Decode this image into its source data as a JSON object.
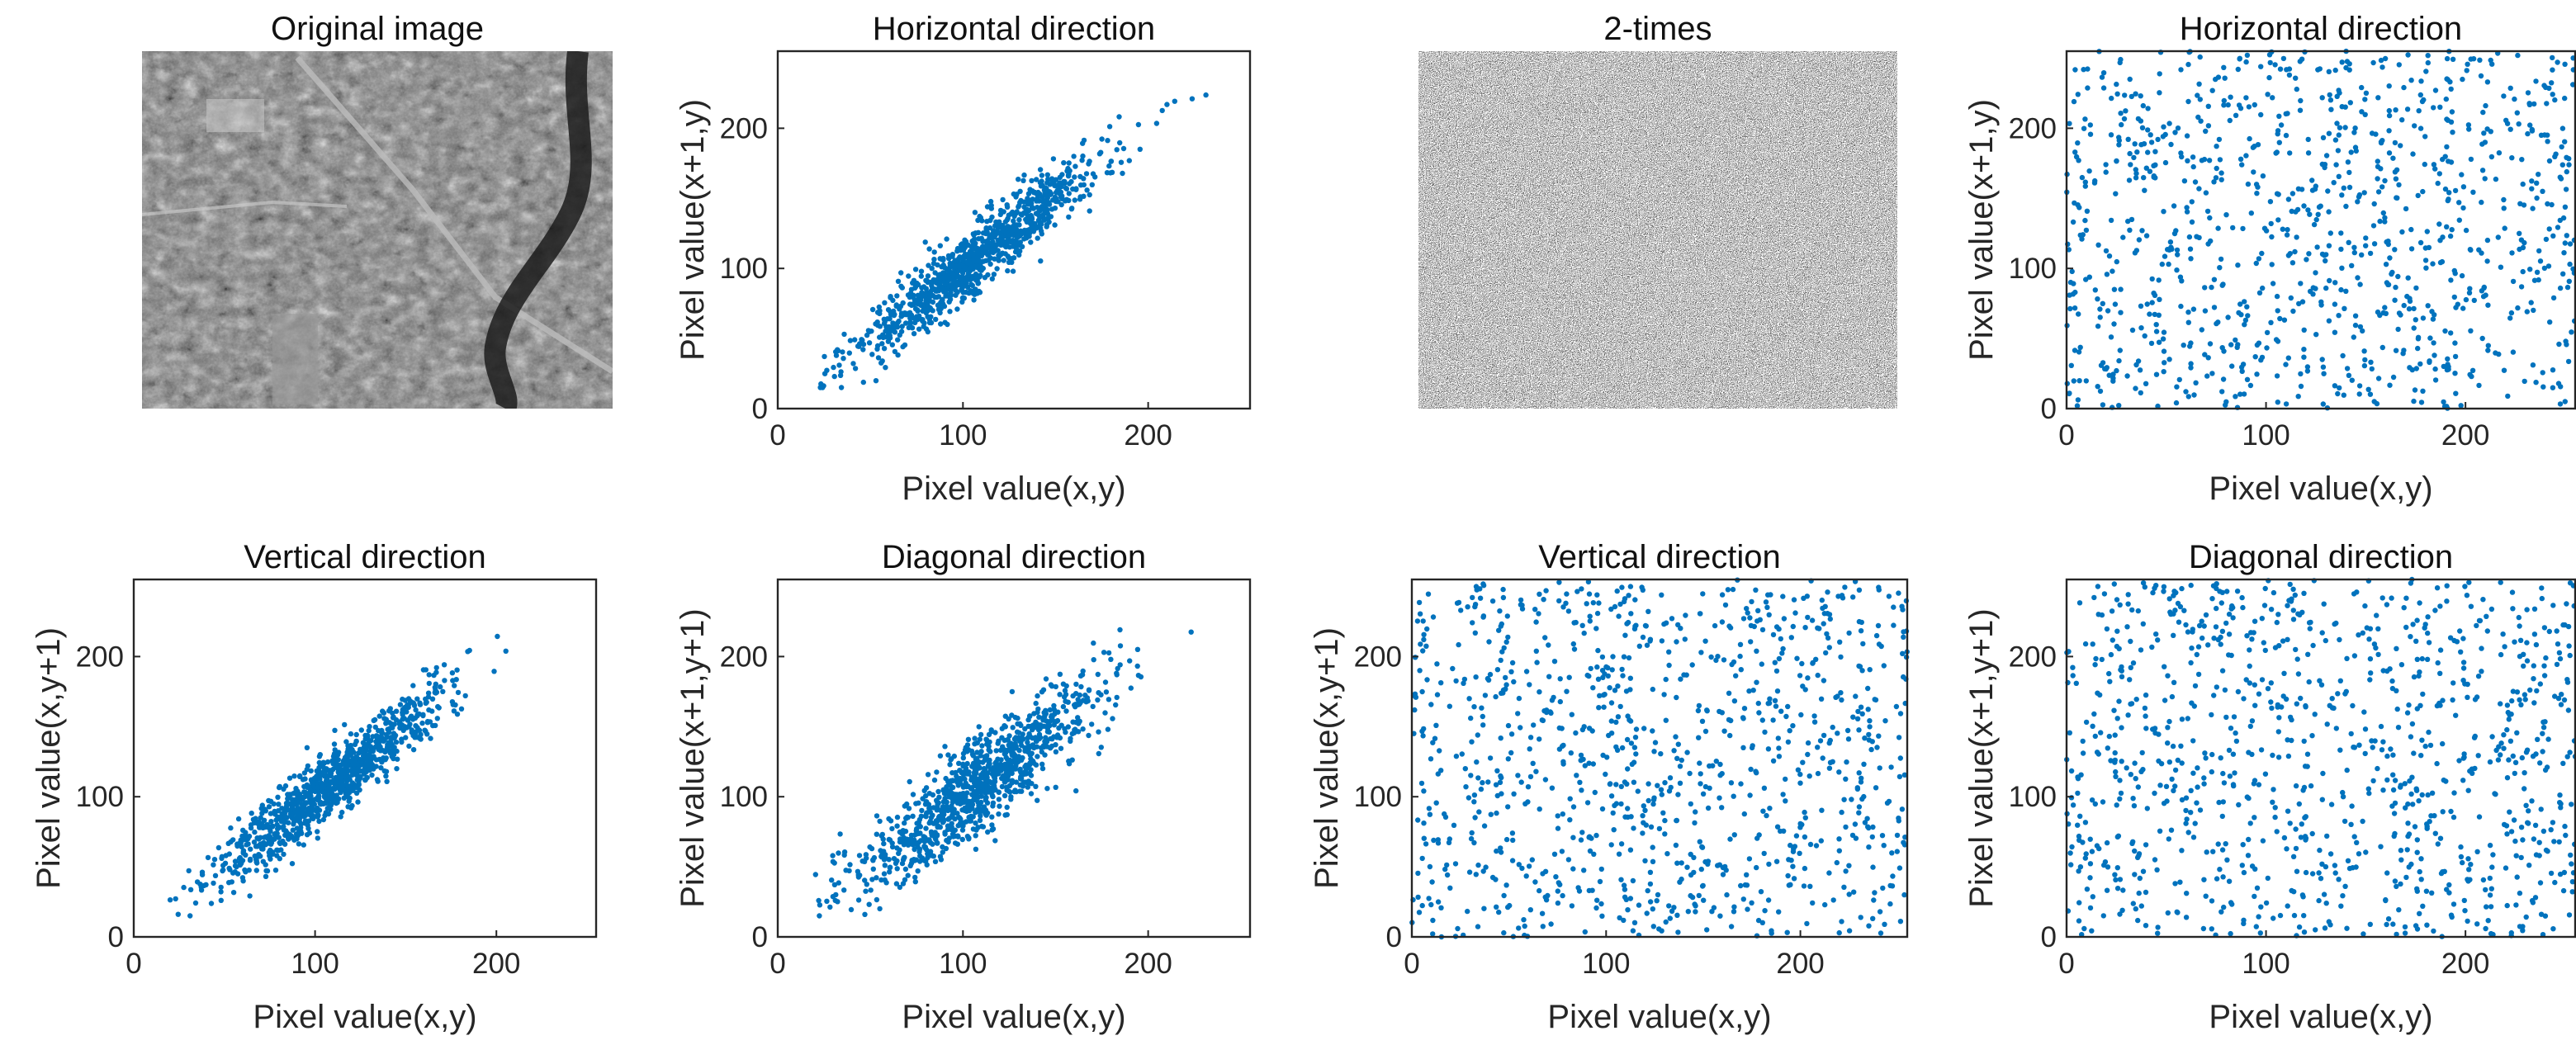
{
  "colors": {
    "marker": "#0072BD",
    "axis": "#262626"
  },
  "images": [
    {
      "title": "Original image",
      "kind": "aerial-photo"
    },
    {
      "title": "2-times",
      "kind": "noise"
    }
  ],
  "chart_data": [
    {
      "type": "scatter",
      "title": "Horizontal direction",
      "xlabel": "Pixel value(x,y)",
      "ylabel": "Pixel value(x+1,y)",
      "xlim": [
        0,
        255
      ],
      "ylim": [
        0,
        255
      ],
      "xticks": [
        0,
        100,
        200
      ],
      "yticks": [
        0,
        100,
        200
      ],
      "pattern": "correlated",
      "n_points": 1000,
      "seed": 11
    },
    {
      "type": "scatter",
      "title": "Horizontal direction",
      "xlabel": "Pixel value(x,y)",
      "ylabel": "Pixel value(x+1,y)",
      "xlim": [
        0,
        255
      ],
      "ylim": [
        0,
        255
      ],
      "xticks": [
        0,
        100,
        200
      ],
      "yticks": [
        0,
        100,
        200
      ],
      "pattern": "uniform",
      "n_points": 1000,
      "seed": 21
    },
    {
      "type": "scatter",
      "title": "Vertical direction",
      "xlabel": "Pixel value(x,y)",
      "ylabel": "Pixel value(x,y+1)",
      "xlim": [
        0,
        255
      ],
      "ylim": [
        0,
        255
      ],
      "xticks": [
        0,
        100,
        200
      ],
      "yticks": [
        0,
        100,
        200
      ],
      "pattern": "correlated",
      "n_points": 1000,
      "seed": 31
    },
    {
      "type": "scatter",
      "title": "Diagonal direction",
      "xlabel": "Pixel value(x,y)",
      "ylabel": "Pixel value(x+1,y+1)",
      "xlim": [
        0,
        255
      ],
      "ylim": [
        0,
        255
      ],
      "xticks": [
        0,
        100,
        200
      ],
      "yticks": [
        0,
        100,
        200
      ],
      "pattern": "correlated-wide",
      "n_points": 1000,
      "seed": 41
    },
    {
      "type": "scatter",
      "title": "Vertical direction",
      "xlabel": "Pixel value(x,y)",
      "ylabel": "Pixel value(x,y+1)",
      "xlim": [
        0,
        255
      ],
      "ylim": [
        0,
        255
      ],
      "xticks": [
        0,
        100,
        200
      ],
      "yticks": [
        0,
        100,
        200
      ],
      "pattern": "uniform",
      "n_points": 1000,
      "seed": 51
    },
    {
      "type": "scatter",
      "title": "Diagonal direction",
      "xlabel": "Pixel value(x,y)",
      "ylabel": "Pixel value(x+1,y+1)",
      "xlim": [
        0,
        255
      ],
      "ylim": [
        0,
        255
      ],
      "xticks": [
        0,
        100,
        200
      ],
      "yticks": [
        0,
        100,
        200
      ],
      "pattern": "uniform",
      "n_points": 1000,
      "seed": 61
    }
  ]
}
